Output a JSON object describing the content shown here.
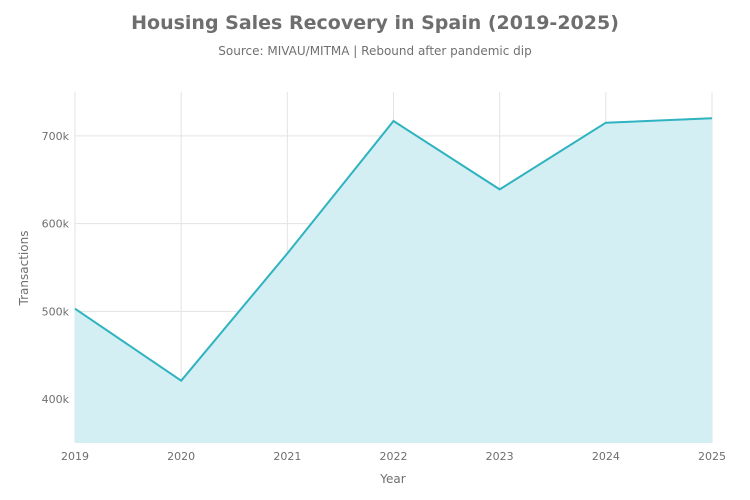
{
  "chart_data": {
    "type": "area",
    "title": "Housing Sales Recovery in Spain (2019-2025)",
    "subtitle": "Source: MIVAU/MITMA | Rebound after pandemic dip",
    "xlabel": "Year",
    "ylabel": "Transactions",
    "x": [
      "2019",
      "2020",
      "2021",
      "2022",
      "2023",
      "2024",
      "2025"
    ],
    "series": [
      {
        "values": [
          503000,
          421000,
          566000,
          717000,
          639000,
          715000,
          720000
        ]
      }
    ],
    "ylim": [
      350000,
      750000
    ],
    "yticks": [
      400000,
      500000,
      600000,
      700000
    ],
    "ytick_labels": [
      "400k",
      "500k",
      "600k",
      "700k"
    ],
    "grid": true,
    "line_color": "#2fb3c1",
    "fill_color": "#d3eff3"
  }
}
